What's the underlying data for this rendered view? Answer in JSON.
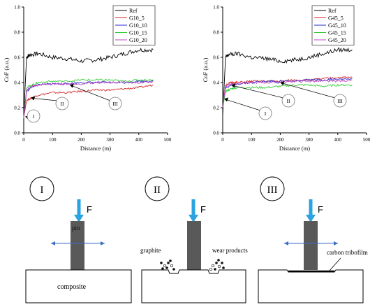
{
  "chart_data": [
    {
      "type": "line",
      "ylabel": "CoF (a.u.)",
      "xlabel": "Distance (m)",
      "xlim": [
        0,
        500
      ],
      "ylim": [
        0.0,
        1.0
      ],
      "xticks": [
        "0",
        "100",
        "200",
        "300",
        "400",
        "500"
      ],
      "yticks": [
        "0.0",
        "0.2",
        "0.4",
        "0.6",
        "0.8",
        "1.0"
      ],
      "legend_position": "top-right",
      "series": [
        {
          "name": "Ref",
          "color": "#000000",
          "x": [
            0,
            10,
            20,
            50,
            100,
            150,
            200,
            250,
            300,
            350,
            400,
            450
          ],
          "y": [
            0.14,
            0.6,
            0.62,
            0.63,
            0.6,
            0.59,
            0.57,
            0.58,
            0.6,
            0.63,
            0.66,
            0.66
          ]
        },
        {
          "name": "G10_5",
          "color": "#d62728",
          "x": [
            0,
            10,
            30,
            50,
            100,
            150,
            200,
            250,
            300,
            350,
            400,
            450
          ],
          "y": [
            0.12,
            0.26,
            0.28,
            0.3,
            0.32,
            0.32,
            0.33,
            0.34,
            0.34,
            0.35,
            0.36,
            0.38
          ]
        },
        {
          "name": "G10_10",
          "color": "#2a2ad6",
          "x": [
            0,
            10,
            30,
            50,
            100,
            150,
            200,
            250,
            300,
            350,
            400,
            450
          ],
          "y": [
            0.12,
            0.33,
            0.37,
            0.38,
            0.39,
            0.39,
            0.4,
            0.4,
            0.4,
            0.4,
            0.41,
            0.41
          ]
        },
        {
          "name": "G10_15",
          "color": "#33cc33",
          "x": [
            0,
            10,
            30,
            50,
            100,
            150,
            200,
            250,
            300,
            350,
            400,
            450
          ],
          "y": [
            0.12,
            0.36,
            0.38,
            0.4,
            0.41,
            0.41,
            0.42,
            0.42,
            0.42,
            0.41,
            0.42,
            0.42
          ]
        },
        {
          "name": "G10_20",
          "color": "#c04bc0",
          "x": [
            0,
            10,
            30,
            50,
            100,
            150,
            200,
            250,
            300,
            350,
            400,
            450
          ],
          "y": [
            0.12,
            0.34,
            0.37,
            0.38,
            0.39,
            0.39,
            0.39,
            0.4,
            0.4,
            0.4,
            0.4,
            0.41
          ]
        }
      ],
      "annotations": [
        {
          "label": "I",
          "x": 5,
          "y": 0.13
        },
        {
          "label": "II",
          "x": 25,
          "y": 0.28
        },
        {
          "label": "III",
          "x": 160,
          "y": 0.38
        }
      ]
    },
    {
      "type": "line",
      "ylabel": "CoF (a.u.)",
      "xlabel": "Distance (m)",
      "xlim": [
        0,
        500
      ],
      "ylim": [
        0.0,
        1.0
      ],
      "xticks": [
        "0",
        "100",
        "200",
        "300",
        "400",
        "500"
      ],
      "yticks": [
        "0.0",
        "0.2",
        "0.4",
        "0.6",
        "0.8",
        "1.0"
      ],
      "legend_position": "top-right",
      "series": [
        {
          "name": "Ref",
          "color": "#000000",
          "x": [
            0,
            10,
            20,
            50,
            100,
            150,
            200,
            250,
            300,
            350,
            400,
            450
          ],
          "y": [
            0.14,
            0.6,
            0.62,
            0.63,
            0.6,
            0.59,
            0.57,
            0.58,
            0.6,
            0.63,
            0.66,
            0.66
          ]
        },
        {
          "name": "G45_5",
          "color": "#d62728",
          "x": [
            0,
            10,
            30,
            50,
            100,
            150,
            200,
            250,
            300,
            350,
            400,
            450
          ],
          "y": [
            0.2,
            0.38,
            0.4,
            0.4,
            0.41,
            0.41,
            0.41,
            0.42,
            0.42,
            0.43,
            0.44,
            0.44
          ]
        },
        {
          "name": "G45_10",
          "color": "#2a2ad6",
          "x": [
            0,
            10,
            30,
            50,
            100,
            150,
            200,
            250,
            300,
            350,
            400,
            450
          ],
          "y": [
            0.2,
            0.36,
            0.38,
            0.39,
            0.4,
            0.41,
            0.41,
            0.41,
            0.42,
            0.42,
            0.43,
            0.43
          ]
        },
        {
          "name": "G45_15",
          "color": "#33cc33",
          "x": [
            0,
            10,
            30,
            50,
            100,
            150,
            200,
            250,
            300,
            350,
            400,
            450
          ],
          "y": [
            0.2,
            0.33,
            0.35,
            0.36,
            0.36,
            0.36,
            0.37,
            0.38,
            0.38,
            0.37,
            0.38,
            0.38
          ]
        },
        {
          "name": "G45_20",
          "color": "#c04bc0",
          "x": [
            0,
            10,
            30,
            50,
            100,
            150,
            200,
            250,
            300,
            350,
            400,
            450
          ],
          "y": [
            0.2,
            0.37,
            0.39,
            0.39,
            0.4,
            0.4,
            0.4,
            0.41,
            0.41,
            0.41,
            0.41,
            0.42
          ]
        }
      ],
      "annotations": [
        {
          "label": "I",
          "x": 5,
          "y": 0.27
        },
        {
          "label": "II",
          "x": 30,
          "y": 0.38
        },
        {
          "label": "III",
          "x": 200,
          "y": 0.4
        }
      ]
    }
  ],
  "schematics": {
    "panels": [
      {
        "numeral": "I",
        "force": "F",
        "pin": "pin",
        "composite": "composite"
      },
      {
        "numeral": "II",
        "force": "F",
        "graphite": "graphite",
        "wear_products": "wear products"
      },
      {
        "numeral": "III",
        "force": "F",
        "tribofilm": "carbon tribofilm"
      }
    ],
    "colors": {
      "force_arrow": "#2aa3e0",
      "pin": "#595959",
      "motion_arrow": "#3b6fc4"
    }
  }
}
